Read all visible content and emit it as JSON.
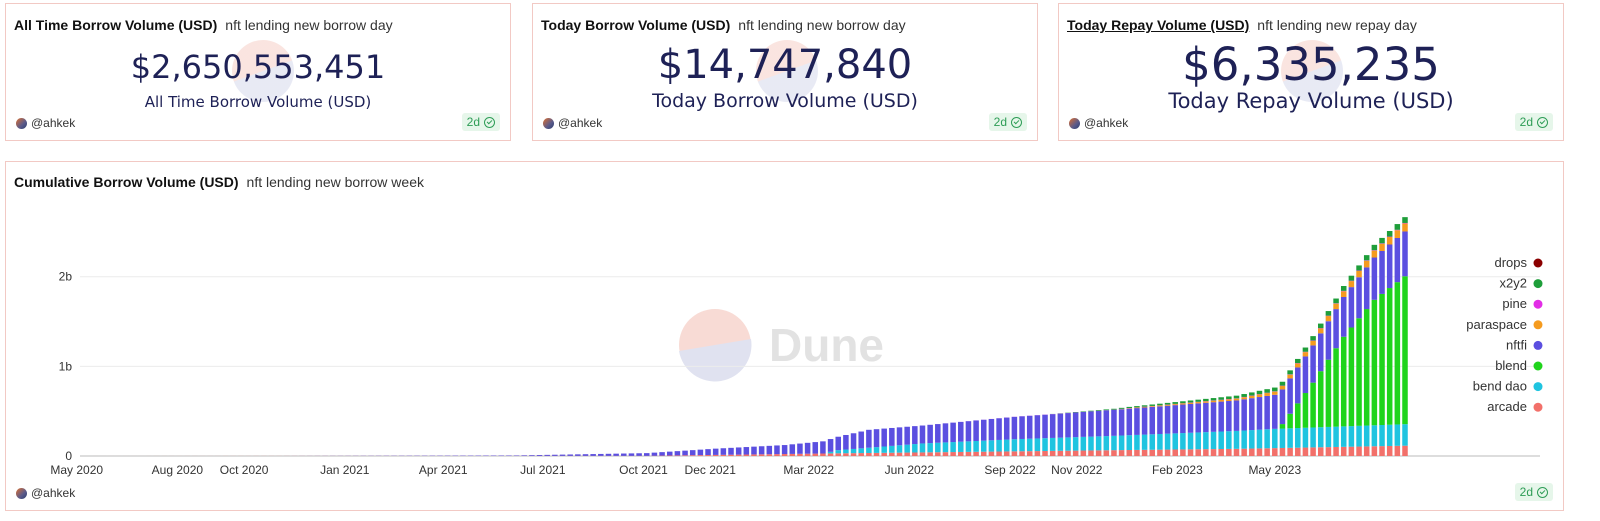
{
  "counters": [
    {
      "title": "All Time Borrow Volume (USD)",
      "subtitle": "nft lending new borrow day",
      "value": "$2,650,553,451",
      "label": "All Time Borrow Volume (USD)",
      "author": "@ahkek",
      "badge": "2d"
    },
    {
      "title": "Today Borrow Volume (USD)",
      "subtitle": "nft lending new borrow day",
      "value": "$14,747,840",
      "label": "Today Borrow Volume (USD)",
      "author": "@ahkek",
      "badge": "2d"
    },
    {
      "title": "Today Repay Volume (USD)",
      "subtitle": "nft lending new repay day",
      "value": "$6,335,235",
      "label": "Today Repay Volume (USD)",
      "author": "@ahkek",
      "badge": "2d"
    }
  ],
  "chart_card": {
    "title": "Cumulative Borrow Volume (USD)",
    "subtitle": "nft lending new borrow week",
    "author": "@ahkek",
    "badge": "2d",
    "watermark": "Dune"
  },
  "colors": {
    "drops": "#8b0000",
    "x2y2": "#1e9e3a",
    "pine": "#e22de6",
    "paraspace": "#f59b1f",
    "nftfi": "#5b4fe0",
    "blend": "#1fd41c",
    "bend dao": "#1fc4e0",
    "arcade": "#f2706a"
  },
  "chart_data": {
    "type": "bar",
    "stacked": true,
    "x_ticks": [
      "May 2020",
      "Aug 2020",
      "Oct 2020",
      "Jan 2021",
      "Apr 2021",
      "Jul 2021",
      "Oct 2021",
      "Dec 2021",
      "Mar 2022",
      "Jun 2022",
      "Sep 2022",
      "Nov 2022",
      "Feb 2023",
      "May 2023"
    ],
    "y_ticks": [
      "0",
      "1b",
      "2b"
    ],
    "ylim": [
      0,
      2700000000
    ],
    "legend_position": "right",
    "grid": true,
    "legend": [
      "drops",
      "x2y2",
      "pine",
      "paraspace",
      "nftfi",
      "blend",
      "bend dao",
      "arcade"
    ],
    "x_range": [
      "2020-05-04",
      "2023-08-28"
    ],
    "series_points": {
      "arcade": [
        [
          "2020-05-04",
          0
        ],
        [
          "2021-10-04",
          2000000
        ],
        [
          "2022-03-28",
          30000000
        ],
        [
          "2022-06-13",
          40000000
        ],
        [
          "2022-12-05",
          65000000
        ],
        [
          "2023-03-27",
          80000000
        ],
        [
          "2023-08-28",
          115000000
        ]
      ],
      "bend dao": [
        [
          "2020-05-04",
          0
        ],
        [
          "2022-03-14",
          0
        ],
        [
          "2022-03-28",
          35000000
        ],
        [
          "2022-06-13",
          100000000
        ],
        [
          "2022-09-05",
          135000000
        ],
        [
          "2022-12-05",
          160000000
        ],
        [
          "2023-03-27",
          200000000
        ],
        [
          "2023-05-01",
          215000000
        ],
        [
          "2023-08-28",
          240000000
        ]
      ],
      "blend": [
        [
          "2020-05-04",
          0
        ],
        [
          "2023-05-01",
          0
        ],
        [
          "2023-05-08",
          50000000
        ],
        [
          "2023-06-05",
          500000000
        ],
        [
          "2023-07-03",
          1000000000
        ],
        [
          "2023-07-31",
          1400000000
        ],
        [
          "2023-08-28",
          1650000000
        ]
      ],
      "nftfi": [
        [
          "2020-05-04",
          0
        ],
        [
          "2020-11-02",
          0
        ],
        [
          "2021-06-07",
          5000000
        ],
        [
          "2021-10-04",
          30000000
        ],
        [
          "2021-12-06",
          70000000
        ],
        [
          "2022-02-07",
          100000000
        ],
        [
          "2022-03-28",
          150000000
        ],
        [
          "2022-04-25",
          200000000
        ],
        [
          "2022-06-13",
          200000000
        ],
        [
          "2022-09-05",
          250000000
        ],
        [
          "2022-12-05",
          290000000
        ],
        [
          "2023-03-27",
          340000000
        ],
        [
          "2023-05-01",
          380000000
        ],
        [
          "2023-08-28",
          500000000
        ]
      ],
      "paraspace": [
        [
          "2020-05-04",
          0
        ],
        [
          "2022-12-05",
          0
        ],
        [
          "2022-12-19",
          5000000
        ],
        [
          "2023-03-27",
          20000000
        ],
        [
          "2023-05-01",
          35000000
        ],
        [
          "2023-08-28",
          90000000
        ]
      ],
      "pine": [
        [
          "2020-05-04",
          0
        ],
        [
          "2022-06-06",
          0
        ],
        [
          "2022-12-05",
          2000000
        ],
        [
          "2023-08-28",
          5000000
        ]
      ],
      "x2y2": [
        [
          "2020-05-04",
          0
        ],
        [
          "2022-10-03",
          0
        ],
        [
          "2022-10-17",
          2000000
        ],
        [
          "2022-12-05",
          10000000
        ],
        [
          "2023-03-27",
          30000000
        ],
        [
          "2023-05-01",
          42000000
        ],
        [
          "2023-08-28",
          65000000
        ]
      ],
      "drops": [
        [
          "2020-05-04",
          0
        ],
        [
          "2023-08-28",
          0
        ]
      ]
    }
  }
}
